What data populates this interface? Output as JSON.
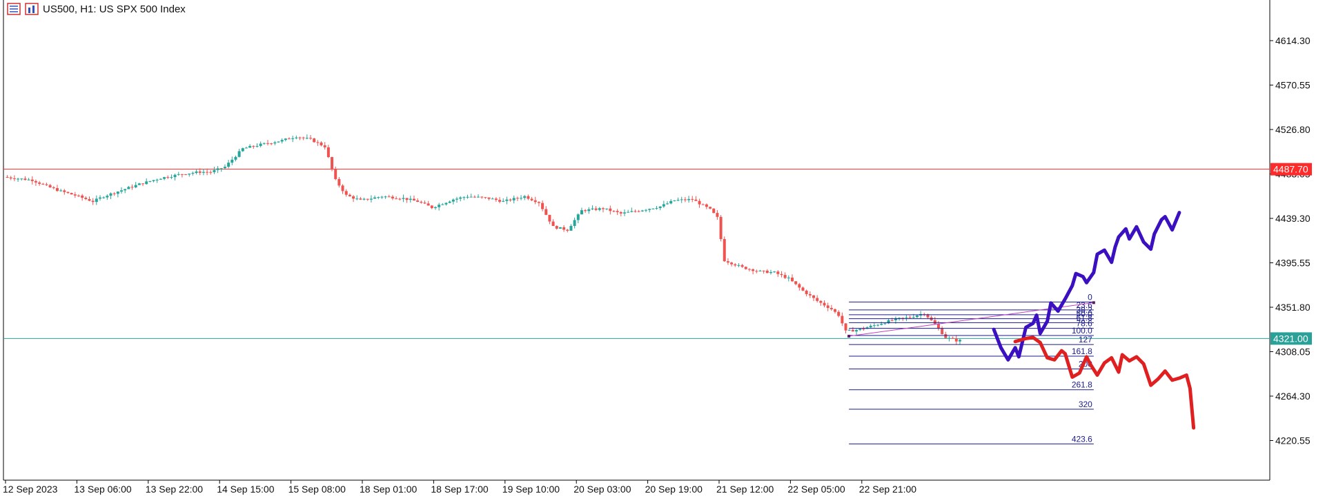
{
  "header": {
    "symbol_label": "US500, H1:  US SPX 500 Index",
    "icons": [
      "chart-list-icon",
      "chart-properties-icon"
    ]
  },
  "chart_data": {
    "type": "candlestick",
    "symbol": "US500",
    "timeframe": "H1",
    "instrument": "US SPX 500 Index",
    "y_ticks": [
      "4614.30",
      "4570.55",
      "4526.80",
      "4483.05",
      "4439.30",
      "4395.55",
      "4351.80",
      "4308.05",
      "4264.30",
      "4220.55"
    ],
    "ylim": [
      4180,
      4660
    ],
    "x_ticks": [
      "12 Sep 2023",
      "13 Sep 06:00",
      "13 Sep 22:00",
      "14 Sep 15:00",
      "15 Sep 08:00",
      "18 Sep 01:00",
      "18 Sep 17:00",
      "19 Sep 10:00",
      "20 Sep 03:00",
      "20 Sep 19:00",
      "21 Sep 12:00",
      "22 Sep 05:00",
      "22 Sep 21:00"
    ],
    "n_bars": 268,
    "price_levels": [
      {
        "label": "4487.70",
        "value": 4487.7,
        "color": "#ff2a2a"
      },
      {
        "label": "4321.00",
        "value": 4321.0,
        "color": "#2aa198"
      }
    ],
    "candle_colors": {
      "up": "#26a69a",
      "down": "#ef5350"
    },
    "close_path": [
      [
        0,
        4480
      ],
      [
        8,
        4477
      ],
      [
        12,
        4471
      ],
      [
        16,
        4466
      ],
      [
        20,
        4462
      ],
      [
        25,
        4456
      ],
      [
        28,
        4461
      ],
      [
        33,
        4467
      ],
      [
        38,
        4473
      ],
      [
        44,
        4479
      ],
      [
        50,
        4483
      ],
      [
        55,
        4485
      ],
      [
        58,
        4485
      ],
      [
        62,
        4490
      ],
      [
        67,
        4508
      ],
      [
        72,
        4512
      ],
      [
        78,
        4516
      ],
      [
        82,
        4520
      ],
      [
        86,
        4517
      ],
      [
        90,
        4510
      ],
      [
        93,
        4477
      ],
      [
        96,
        4462
      ],
      [
        100,
        4457
      ],
      [
        106,
        4461
      ],
      [
        112,
        4459
      ],
      [
        116,
        4456
      ],
      [
        120,
        4450
      ],
      [
        126,
        4458
      ],
      [
        130,
        4461
      ],
      [
        136,
        4459
      ],
      [
        140,
        4456
      ],
      [
        146,
        4461
      ],
      [
        150,
        4455
      ],
      [
        154,
        4431
      ],
      [
        158,
        4428
      ],
      [
        162,
        4447
      ],
      [
        168,
        4449
      ],
      [
        173,
        4444
      ],
      [
        178,
        4447
      ],
      [
        184,
        4451
      ],
      [
        188,
        4457
      ],
      [
        193,
        4458
      ],
      [
        198,
        4448
      ],
      [
        200,
        4440
      ],
      [
        202,
        4398
      ],
      [
        207,
        4391
      ],
      [
        212,
        4387
      ],
      [
        216,
        4386
      ],
      [
        220,
        4380
      ],
      [
        224,
        4368
      ],
      [
        228,
        4358
      ],
      [
        232,
        4350
      ],
      [
        234,
        4344
      ],
      [
        236,
        4328
      ],
      [
        240,
        4330
      ],
      [
        245,
        4335
      ],
      [
        250,
        4340
      ],
      [
        254,
        4342
      ],
      [
        258,
        4346
      ],
      [
        261,
        4335
      ],
      [
        264,
        4322
      ],
      [
        267,
        4319
      ]
    ],
    "fibonacci": {
      "levels": [
        "0",
        "23.6",
        "38.2",
        "50.0",
        "61.8",
        "78.6",
        "100.0",
        "127",
        "161.8",
        "200",
        "261.8",
        "320",
        "423.6"
      ],
      "ratios": [
        0,
        0.236,
        0.382,
        0.5,
        0.618,
        0.786,
        1.0,
        1.27,
        1.618,
        2.0,
        2.618,
        3.2,
        4.236
      ],
      "price_0": 4357,
      "price_100": 4324,
      "start_bar": 236,
      "end_bar": 305,
      "color": "#1a1a8c",
      "trend_line_color": "#c040c0"
    },
    "projections": [
      {
        "color": "#3a10c0",
        "points": [
          [
            277,
            4330
          ],
          [
            279,
            4312
          ],
          [
            281,
            4300
          ],
          [
            283,
            4312
          ],
          [
            284,
            4303
          ],
          [
            286,
            4332
          ],
          [
            288,
            4336
          ],
          [
            289,
            4344
          ],
          [
            290,
            4326
          ],
          [
            292,
            4338
          ],
          [
            293,
            4356
          ],
          [
            295,
            4348
          ],
          [
            297,
            4360
          ],
          [
            299,
            4373
          ],
          [
            300,
            4385
          ],
          [
            302,
            4382
          ],
          [
            303,
            4376
          ],
          [
            305,
            4386
          ],
          [
            306,
            4404
          ],
          [
            308,
            4408
          ],
          [
            310,
            4396
          ],
          [
            311,
            4411
          ],
          [
            312,
            4421
          ],
          [
            314,
            4429
          ],
          [
            315,
            4419
          ],
          [
            317,
            4431
          ],
          [
            319,
            4416
          ],
          [
            321,
            4409
          ],
          [
            322,
            4424
          ],
          [
            324,
            4438
          ],
          [
            325,
            4441
          ],
          [
            327,
            4428
          ],
          [
            329,
            4445
          ]
        ]
      },
      {
        "color": "#e02020",
        "points": [
          [
            283,
            4318
          ],
          [
            286,
            4321
          ],
          [
            288,
            4322
          ],
          [
            290,
            4317
          ],
          [
            292,
            4302
          ],
          [
            294,
            4300
          ],
          [
            296,
            4309
          ],
          [
            297,
            4306
          ],
          [
            299,
            4283
          ],
          [
            301,
            4287
          ],
          [
            303,
            4303
          ],
          [
            304,
            4296
          ],
          [
            306,
            4285
          ],
          [
            308,
            4297
          ],
          [
            310,
            4302
          ],
          [
            312,
            4288
          ],
          [
            313,
            4305
          ],
          [
            315,
            4299
          ],
          [
            317,
            4303
          ],
          [
            319,
            4296
          ],
          [
            321,
            4275
          ],
          [
            323,
            4281
          ],
          [
            325,
            4289
          ],
          [
            327,
            4280
          ],
          [
            329,
            4282
          ],
          [
            331,
            4285
          ],
          [
            332,
            4272
          ],
          [
            333,
            4233
          ]
        ]
      }
    ]
  }
}
